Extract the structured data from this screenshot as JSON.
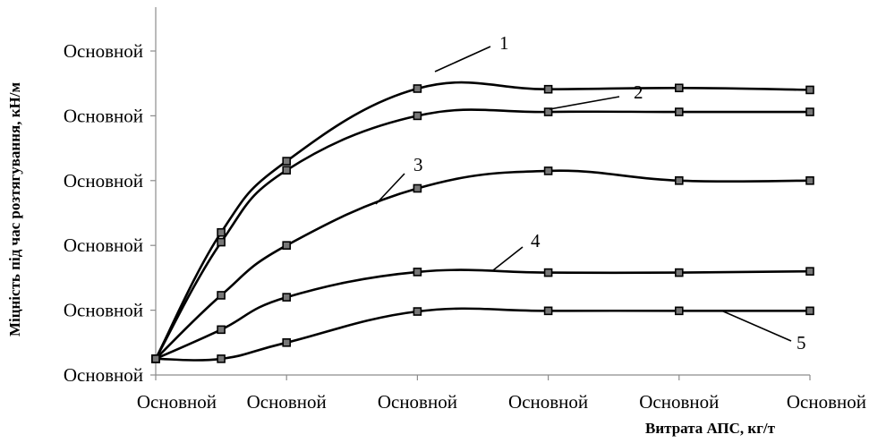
{
  "chart_data": {
    "type": "line",
    "title": "",
    "xlabel": "Витрата АПС, кг/т",
    "ylabel": "Міцність під час розтягування, кН/м",
    "x_tick_labels": [
      "Основной",
      "Основной",
      "Основной",
      "Основной",
      "Основной",
      "Основной"
    ],
    "y_tick_labels": [
      "Основной",
      "Основной",
      "Основной",
      "Основной",
      "Основной",
      "Основной"
    ],
    "x": [
      0,
      1,
      2,
      4,
      6,
      8,
      10
    ],
    "ylim": [
      0,
      5
    ],
    "xlim": [
      0,
      10
    ],
    "grid": false,
    "legend": "none",
    "series": [
      {
        "name": "1",
        "values": [
          0.25,
          2.2,
          3.3,
          4.42,
          4.41,
          4.43,
          4.4
        ]
      },
      {
        "name": "2",
        "values": [
          0.25,
          2.05,
          3.16,
          4.0,
          4.06,
          4.06,
          4.06
        ]
      },
      {
        "name": "3",
        "values": [
          0.25,
          1.23,
          2.0,
          2.88,
          3.15,
          3.0,
          3.0
        ]
      },
      {
        "name": "4",
        "values": [
          0.25,
          0.7,
          1.2,
          1.59,
          1.58,
          1.58,
          1.6
        ]
      },
      {
        "name": "5",
        "values": [
          0.25,
          0.25,
          0.5,
          0.98,
          0.99,
          0.99,
          0.99
        ]
      }
    ]
  }
}
